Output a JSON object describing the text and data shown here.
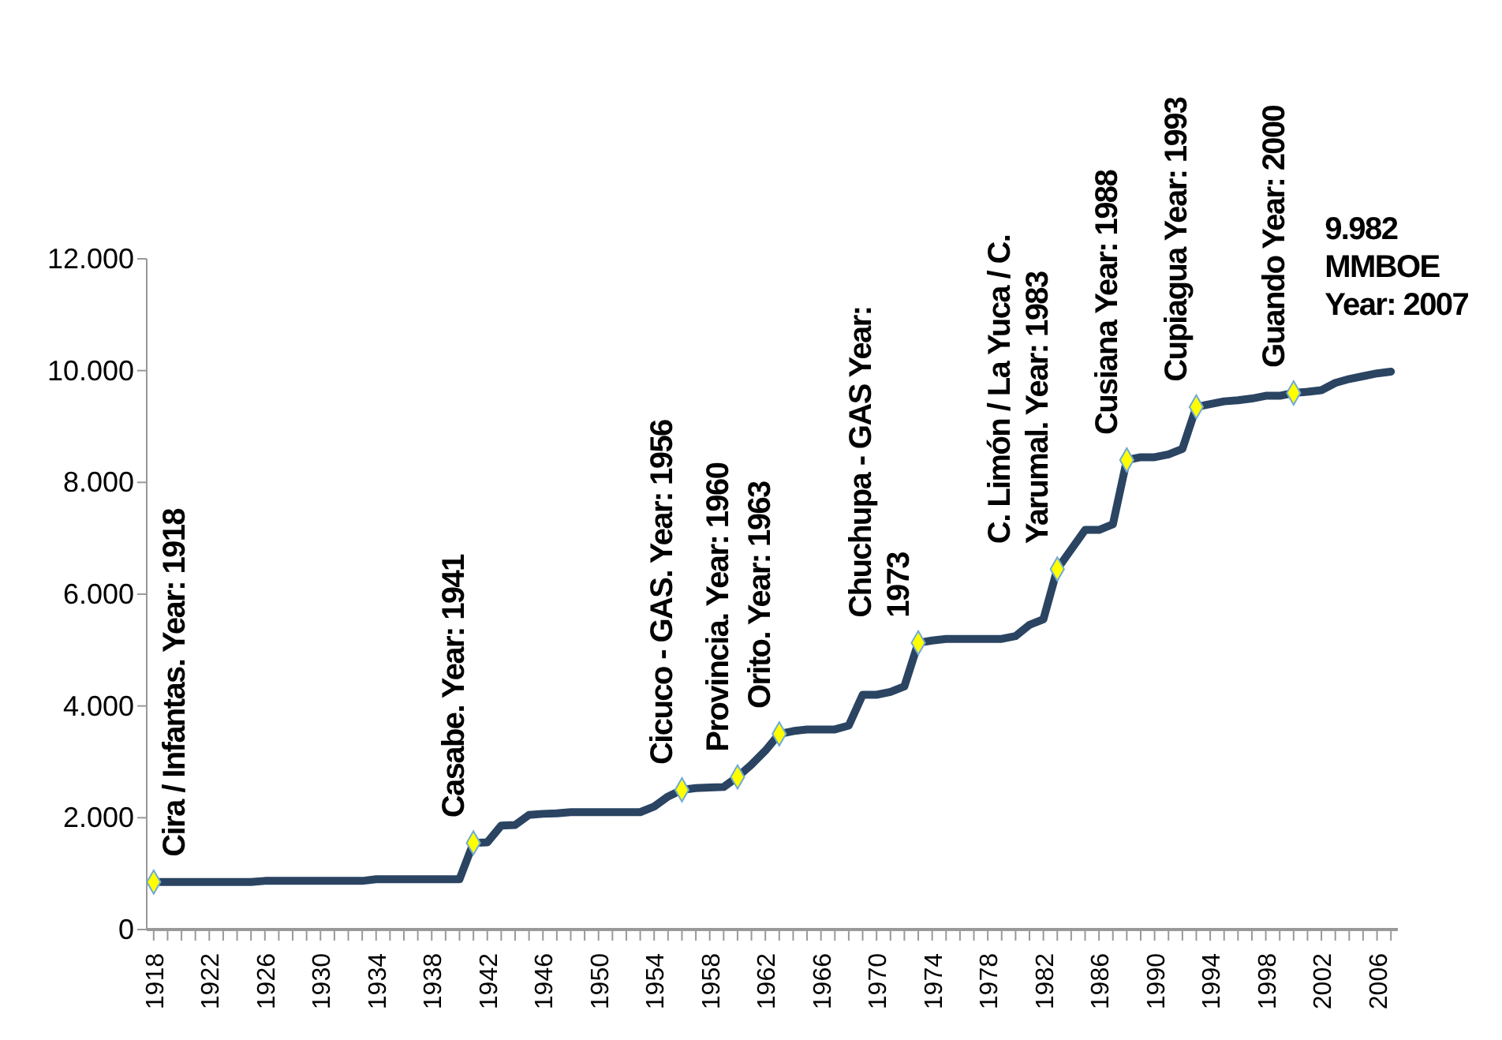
{
  "chart_data": {
    "type": "line",
    "x": [
      1918,
      1919,
      1920,
      1921,
      1922,
      1923,
      1924,
      1925,
      1926,
      1927,
      1928,
      1929,
      1930,
      1931,
      1932,
      1933,
      1934,
      1935,
      1936,
      1937,
      1938,
      1939,
      1940,
      1941,
      1942,
      1943,
      1944,
      1945,
      1946,
      1947,
      1948,
      1949,
      1950,
      1951,
      1952,
      1953,
      1954,
      1955,
      1956,
      1957,
      1958,
      1959,
      1960,
      1961,
      1962,
      1963,
      1964,
      1965,
      1966,
      1967,
      1968,
      1969,
      1970,
      1971,
      1972,
      1973,
      1974,
      1975,
      1976,
      1977,
      1978,
      1979,
      1980,
      1981,
      1982,
      1983,
      1984,
      1985,
      1986,
      1987,
      1988,
      1989,
      1990,
      1991,
      1992,
      1993,
      1994,
      1995,
      1996,
      1997,
      1998,
      1999,
      2000,
      2001,
      2002,
      2003,
      2004,
      2005,
      2006,
      2007
    ],
    "series": [
      {
        "color": "#2a4462",
        "marker": "none",
        "values": [
          850,
          850,
          850,
          850,
          850,
          850,
          850,
          850,
          870,
          870,
          870,
          870,
          870,
          870,
          870,
          870,
          900,
          900,
          900,
          900,
          900,
          900,
          900,
          1550,
          1560,
          1860,
          1870,
          2050,
          2070,
          2080,
          2100,
          2100,
          2100,
          2100,
          2100,
          2100,
          2200,
          2380,
          2500,
          2530,
          2540,
          2550,
          2730,
          2950,
          3200,
          3500,
          3550,
          3580,
          3580,
          3580,
          3650,
          4200,
          4200,
          4250,
          4350,
          5130,
          5170,
          5200,
          5200,
          5200,
          5200,
          5200,
          5250,
          5450,
          5550,
          6450,
          6800,
          7150,
          7150,
          7250,
          8400,
          8450,
          8450,
          8500,
          8600,
          9350,
          9400,
          9450,
          9470,
          9500,
          9550,
          9550,
          9600,
          9620,
          9650,
          9780,
          9850,
          9900,
          9950,
          9982
        ]
      },
      {
        "type": "scatter",
        "color": "#ffff00",
        "marker": "diamond",
        "x": [
          1918,
          1941,
          1956,
          1960,
          1963,
          1973,
          1983,
          1988,
          1993,
          2000
        ],
        "values": [
          850,
          1550,
          2500,
          2730,
          3500,
          5130,
          6450,
          8400,
          9350,
          9600
        ]
      }
    ],
    "xlim": [
      1917.5,
      2007.5
    ],
    "xticks": [
      1918,
      {
        "value": 1919,
        "label": null
      },
      {
        "value": 1920,
        "label": null
      },
      {
        "value": 1921,
        "label": null
      },
      1922,
      {
        "value": 1923,
        "label": null
      },
      {
        "value": 1924,
        "label": null
      },
      {
        "value": 1925,
        "label": null
      },
      1926,
      {
        "value": 1927,
        "label": null
      },
      {
        "value": 1928,
        "label": null
      },
      {
        "value": 1929,
        "label": null
      },
      1930,
      {
        "value": 1931,
        "label": null
      },
      {
        "value": 1932,
        "label": null
      },
      {
        "value": 1933,
        "label": null
      },
      1934,
      {
        "value": 1935,
        "label": null
      },
      {
        "value": 1936,
        "label": null
      },
      {
        "value": 1937,
        "label": null
      },
      1938,
      {
        "value": 1939,
        "label": null
      },
      {
        "value": 1940,
        "label": null
      },
      {
        "value": 1941,
        "label": null
      },
      1942,
      {
        "value": 1943,
        "label": null
      },
      {
        "value": 1944,
        "label": null
      },
      {
        "value": 1945,
        "label": null
      },
      1946,
      {
        "value": 1947,
        "label": null
      },
      {
        "value": 1948,
        "label": null
      },
      {
        "value": 1949,
        "label": null
      },
      1950,
      {
        "value": 1951,
        "label": null
      },
      {
        "value": 1952,
        "label": null
      },
      {
        "value": 1953,
        "label": null
      },
      1954,
      {
        "value": 1955,
        "label": null
      },
      {
        "value": 1956,
        "label": null
      },
      {
        "value": 1957,
        "label": null
      },
      1958,
      {
        "value": 1959,
        "label": null
      },
      {
        "value": 1960,
        "label": null
      },
      {
        "value": 1961,
        "label": null
      },
      1962,
      {
        "value": 1963,
        "label": null
      },
      {
        "value": 1964,
        "label": null
      },
      {
        "value": 1965,
        "label": null
      },
      1966,
      {
        "value": 1967,
        "label": null
      },
      {
        "value": 1968,
        "label": null
      },
      {
        "value": 1969,
        "label": null
      },
      1970,
      {
        "value": 1971,
        "label": null
      },
      {
        "value": 1972,
        "label": null
      },
      {
        "value": 1973,
        "label": null
      },
      1974,
      {
        "value": 1975,
        "label": null
      },
      {
        "value": 1976,
        "label": null
      },
      {
        "value": 1977,
        "label": null
      },
      1978,
      {
        "value": 1979,
        "label": null
      },
      {
        "value": 1980,
        "label": null
      },
      {
        "value": 1981,
        "label": null
      },
      1982,
      {
        "value": 1983,
        "label": null
      },
      {
        "value": 1984,
        "label": null
      },
      {
        "value": 1985,
        "label": null
      },
      1986,
      {
        "value": 1987,
        "label": null
      },
      {
        "value": 1988,
        "label": null
      },
      {
        "value": 1989,
        "label": null
      },
      1990,
      {
        "value": 1991,
        "label": null
      },
      {
        "value": 1992,
        "label": null
      },
      {
        "value": 1993,
        "label": null
      },
      1994,
      {
        "value": 1995,
        "label": null
      },
      {
        "value": 1996,
        "label": null
      },
      {
        "value": 1997,
        "label": null
      },
      1998,
      {
        "value": 1999,
        "label": null
      },
      {
        "value": 2000,
        "label": null
      },
      {
        "value": 2001,
        "label": null
      },
      2002,
      {
        "value": 2003,
        "label": null
      },
      {
        "value": 2004,
        "label": null
      },
      {
        "value": 2005,
        "label": null
      },
      2006,
      {
        "value": 2007,
        "label": null
      }
    ],
    "ylim": [
      0,
      12000
    ],
    "yticks": [
      0,
      {
        "value": 2000,
        "label": "2.000"
      },
      {
        "value": 4000,
        "label": "4.000"
      },
      {
        "value": 6000,
        "label": "6.000"
      },
      {
        "value": 8000,
        "label": "8.000"
      },
      {
        "value": 10000,
        "label": "10.000"
      },
      {
        "value": 12000,
        "label": "12.000"
      }
    ],
    "grid": false,
    "legend": false,
    "annotations": [
      {
        "text": "Cira / Infantas. Year: 1918",
        "x": 1918,
        "y": 850
      },
      {
        "text": "Casabe. Year: 1941",
        "x": 1941,
        "y": 1550
      },
      {
        "text": "Cicuco - GAS. Year: 1956",
        "x": 1956,
        "y": 2500
      },
      {
        "text": "Provincia. Year: 1960",
        "x": 1960,
        "y": 2730
      },
      {
        "text": "Orito. Year: 1963",
        "x": 1963,
        "y": 3500
      },
      {
        "text": "Chuchupa - GAS Year:\n1973",
        "x": 1973,
        "y": 5130
      },
      {
        "text": "C. Limón / La Yuca / C.\nYarumal. Year: 1983",
        "x": 1983,
        "y": 6450
      },
      {
        "text": "Cusiana Year: 1988",
        "x": 1988,
        "y": 8400
      },
      {
        "text": "Cupiagua  Year: 1993",
        "x": 1993,
        "y": 9350
      },
      {
        "text": "Guando  Year: 2000",
        "x": 2000,
        "y": 9600
      },
      {
        "text": "9.982\nMMBOE\nYear: 2007",
        "x": 2007,
        "y": 9982
      }
    ]
  }
}
